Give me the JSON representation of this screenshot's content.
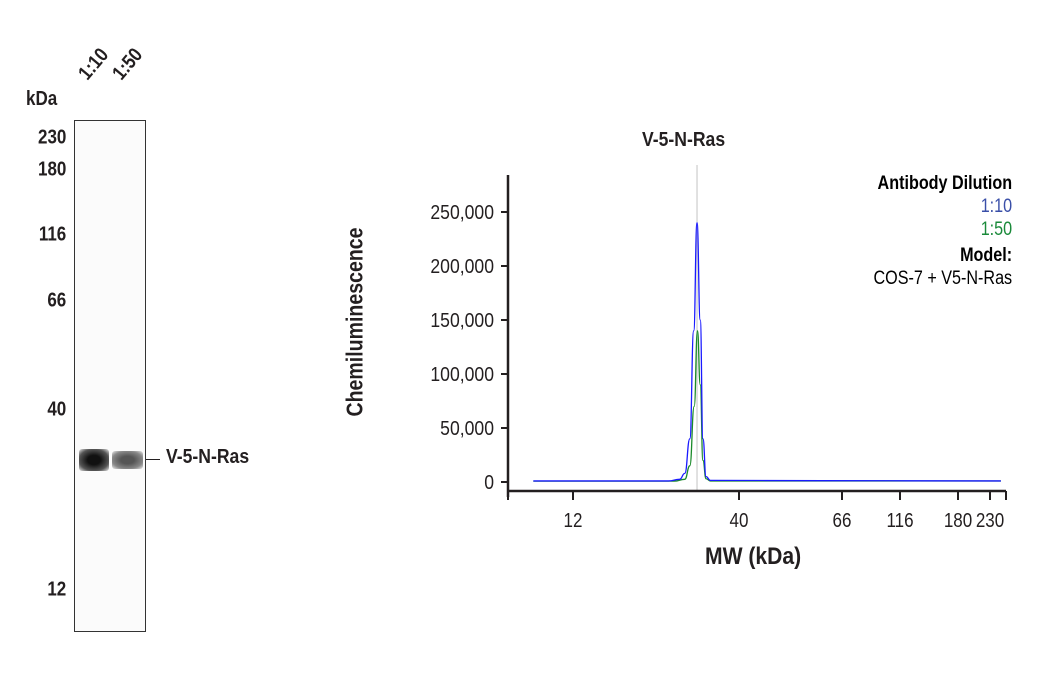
{
  "blot": {
    "unit_label": "kDa",
    "lanes": [
      "1:10",
      "1:50"
    ],
    "markers": [
      {
        "label": "230",
        "kda": 230
      },
      {
        "label": "180",
        "kda": 180
      },
      {
        "label": "116",
        "kda": 116
      },
      {
        "label": "66",
        "kda": 66
      },
      {
        "label": "40",
        "kda": 40
      },
      {
        "label": "12",
        "kda": 12
      }
    ],
    "band_label": "V-5-N-Ras",
    "band_intensity": [
      1.0,
      0.6
    ]
  },
  "chart_data": {
    "type": "line",
    "title": "V-5-N-Ras",
    "xlabel": "MW (kDa)",
    "ylabel": "Chemiluminescence",
    "x_scale": "non-linear (MW ladder)",
    "x_ticks": [
      12,
      40,
      66,
      116,
      180,
      230
    ],
    "x_tick_labels": [
      "12",
      "40",
      "66",
      "116",
      "180",
      "230"
    ],
    "y_ticks": [
      0,
      50000,
      100000,
      150000,
      200000,
      250000
    ],
    "y_tick_labels": [
      "0",
      "50,000",
      "100,000",
      "150,000",
      "200,000",
      "250,000"
    ],
    "ylim": [
      0,
      285000
    ],
    "grid": false,
    "reference_line_kda": 29.5,
    "legend": {
      "title": "Antibody Dilution",
      "placement": "top-right",
      "model_title": "Model:",
      "model_value": "COS-7 + V5-N-Ras"
    },
    "series": [
      {
        "name": "1:10",
        "color": "#1a1aff",
        "label_color": "#3a4fa8",
        "points": [
          [
            9,
            1000
          ],
          [
            24,
            1000
          ],
          [
            26,
            2500
          ],
          [
            27,
            8000
          ],
          [
            28,
            40000
          ],
          [
            28.8,
            140000
          ],
          [
            29.5,
            240000
          ],
          [
            30.2,
            150000
          ],
          [
            30.8,
            40000
          ],
          [
            31.5,
            5000
          ],
          [
            32.5,
            1500
          ],
          [
            60,
            1200
          ],
          [
            250,
            1000
          ]
        ]
      },
      {
        "name": "1:50",
        "color": "#1a8a2a",
        "label_color": "#1a8a3a",
        "points": [
          [
            9,
            800
          ],
          [
            25,
            800
          ],
          [
            27,
            2500
          ],
          [
            28,
            15000
          ],
          [
            28.9,
            70000
          ],
          [
            29.6,
            140000
          ],
          [
            30.2,
            90000
          ],
          [
            30.8,
            20000
          ],
          [
            31.5,
            3000
          ],
          [
            32.5,
            1000
          ],
          [
            60,
            1000
          ],
          [
            250,
            900
          ]
        ]
      }
    ]
  }
}
